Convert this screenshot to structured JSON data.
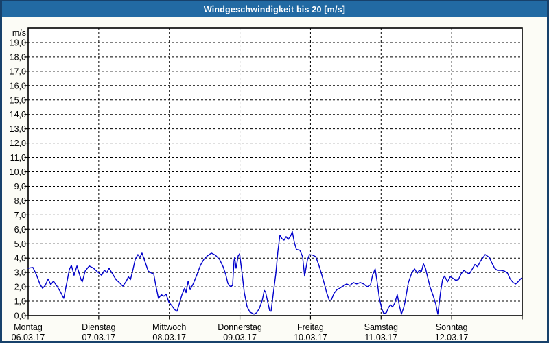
{
  "window": {
    "title": "Windgeschwindigkeit bis 20 [m/s]"
  },
  "colors": {
    "titlebar_bg": "#226AA3",
    "title_text": "#FFFFFF",
    "window_border": "#17416B",
    "page_bg": "#FCFCF6",
    "plot_bg": "#FFFFFF",
    "grid": "#000000",
    "series_blue": "#0000CC"
  },
  "chart_data": {
    "type": "line",
    "title": "Windgeschwindigkeit bis 20 [m/s]",
    "xlabel": "",
    "ylabel": "m/s",
    "ylim": [
      0,
      20
    ],
    "y_tick_step": 1.0,
    "grid": "dashed",
    "legend": "none",
    "y_tick_labels": [
      "0,0",
      "1,0",
      "2,0",
      "3,0",
      "4,0",
      "5,0",
      "6,0",
      "7,0",
      "8,0",
      "9,0",
      "10,0",
      "11,0",
      "12,0",
      "13,0",
      "14,0",
      "15,0",
      "16,0",
      "17,0",
      "18,0",
      "19,0"
    ],
    "x_axis": {
      "total_hours": 168,
      "days": [
        {
          "name": "Montag",
          "date": "06.03.17"
        },
        {
          "name": "Dienstag",
          "date": "07.03.17"
        },
        {
          "name": "Mittwoch",
          "date": "08.03.17"
        },
        {
          "name": "Donnerstag",
          "date": "09.03.17"
        },
        {
          "name": "Freitag",
          "date": "10.03.17"
        },
        {
          "name": "Samstag",
          "date": "11.03.17"
        },
        {
          "name": "Sonntag",
          "date": "12.03.17"
        }
      ]
    },
    "series": [
      {
        "name": "Windgeschwindigkeit",
        "unit": "m/s",
        "color": "#0000CC",
        "x_unit": "hours_from_monday_00",
        "points": [
          [
            0,
            3.3
          ],
          [
            1.6,
            3.35
          ],
          [
            2.8,
            2.85
          ],
          [
            4,
            2.2
          ],
          [
            4.9,
            1.9
          ],
          [
            5.8,
            2.1
          ],
          [
            6.8,
            2.55
          ],
          [
            7.7,
            2.15
          ],
          [
            8.6,
            2.4
          ],
          [
            9.8,
            2.05
          ],
          [
            11,
            1.65
          ],
          [
            12.1,
            1.2
          ],
          [
            13.3,
            2.45
          ],
          [
            14,
            3.2
          ],
          [
            14.7,
            3.5
          ],
          [
            15.6,
            2.8
          ],
          [
            16.6,
            3.45
          ],
          [
            18,
            2.5
          ],
          [
            18.4,
            2.35
          ],
          [
            19.4,
            3.1
          ],
          [
            20.8,
            3.45
          ],
          [
            22.2,
            3.3
          ],
          [
            23.8,
            3.0
          ],
          [
            25,
            2.8
          ],
          [
            25.9,
            3.15
          ],
          [
            26.8,
            3.0
          ],
          [
            27.5,
            3.3
          ],
          [
            28.7,
            2.9
          ],
          [
            29.9,
            2.5
          ],
          [
            31,
            2.3
          ],
          [
            32.2,
            2.05
          ],
          [
            33.4,
            2.4
          ],
          [
            34.1,
            2.7
          ],
          [
            34.8,
            2.5
          ],
          [
            35.7,
            3.25
          ],
          [
            36.4,
            3.9
          ],
          [
            37.3,
            4.25
          ],
          [
            38,
            4.05
          ],
          [
            38.7,
            4.35
          ],
          [
            39.9,
            3.65
          ],
          [
            40.8,
            3.1
          ],
          [
            42,
            2.95
          ],
          [
            42.7,
            2.9
          ],
          [
            43.4,
            2.1
          ],
          [
            44.3,
            1.2
          ],
          [
            45.3,
            1.45
          ],
          [
            46.2,
            1.35
          ],
          [
            46.9,
            1.5
          ],
          [
            47.8,
            0.95
          ],
          [
            48.8,
            0.7
          ],
          [
            49.9,
            0.4
          ],
          [
            50.6,
            0.3
          ],
          [
            51.6,
            0.95
          ],
          [
            52.3,
            1.45
          ],
          [
            53.2,
            1.9
          ],
          [
            53.7,
            1.6
          ],
          [
            54.4,
            2.4
          ],
          [
            55.1,
            1.8
          ],
          [
            56.2,
            2.25
          ],
          [
            57.4,
            2.85
          ],
          [
            58.6,
            3.5
          ],
          [
            59.7,
            3.9
          ],
          [
            60.9,
            4.15
          ],
          [
            62.3,
            4.35
          ],
          [
            63.7,
            4.2
          ],
          [
            65.1,
            3.9
          ],
          [
            66.3,
            3.4
          ],
          [
            67.2,
            2.85
          ],
          [
            67.9,
            2.25
          ],
          [
            68.8,
            2.0
          ],
          [
            69.5,
            2.1
          ],
          [
            70,
            3.8
          ],
          [
            70.2,
            4.05
          ],
          [
            70.7,
            3.3
          ],
          [
            71.4,
            4.15
          ],
          [
            71.9,
            4.3
          ],
          [
            72.6,
            3.2
          ],
          [
            73.5,
            1.6
          ],
          [
            74.4,
            0.65
          ],
          [
            75.4,
            0.25
          ],
          [
            76.8,
            0.1
          ],
          [
            77.7,
            0.2
          ],
          [
            78.6,
            0.5
          ],
          [
            79.6,
            1.05
          ],
          [
            80.3,
            1.75
          ],
          [
            80.7,
            1.65
          ],
          [
            81.4,
            1.0
          ],
          [
            82.1,
            0.35
          ],
          [
            82.6,
            0.3
          ],
          [
            83.3,
            1.45
          ],
          [
            84.2,
            2.9
          ],
          [
            84.9,
            4.45
          ],
          [
            85.6,
            5.6
          ],
          [
            86.3,
            5.35
          ],
          [
            87,
            5.25
          ],
          [
            87.7,
            5.5
          ],
          [
            88.4,
            5.3
          ],
          [
            89.4,
            5.6
          ],
          [
            89.8,
            5.85
          ],
          [
            90.5,
            5.1
          ],
          [
            91.2,
            4.6
          ],
          [
            92.4,
            4.55
          ],
          [
            93.3,
            4.1
          ],
          [
            94,
            2.75
          ],
          [
            95,
            3.9
          ],
          [
            95.7,
            4.25
          ],
          [
            96.8,
            4.2
          ],
          [
            97.8,
            4.1
          ],
          [
            98.7,
            3.6
          ],
          [
            99.6,
            3.0
          ],
          [
            100.6,
            2.3
          ],
          [
            101.5,
            1.6
          ],
          [
            102.4,
            1.05
          ],
          [
            103.1,
            1.1
          ],
          [
            104,
            1.55
          ],
          [
            105,
            1.8
          ],
          [
            105.9,
            1.9
          ],
          [
            107.1,
            2.05
          ],
          [
            108.3,
            2.2
          ],
          [
            109.4,
            2.1
          ],
          [
            110.6,
            2.3
          ],
          [
            111.7,
            2.2
          ],
          [
            112.9,
            2.3
          ],
          [
            114.1,
            2.2
          ],
          [
            115.3,
            2.0
          ],
          [
            116.4,
            2.15
          ],
          [
            117.1,
            2.8
          ],
          [
            118,
            3.25
          ],
          [
            118.7,
            2.3
          ],
          [
            119.4,
            1.25
          ],
          [
            120.2,
            0.5
          ],
          [
            120.9,
            0.15
          ],
          [
            121.8,
            0.2
          ],
          [
            122.5,
            0.55
          ],
          [
            123.2,
            0.75
          ],
          [
            123.9,
            0.6
          ],
          [
            124.6,
            0.85
          ],
          [
            125.5,
            1.45
          ],
          [
            126.2,
            0.7
          ],
          [
            126.9,
            0.1
          ],
          [
            127.6,
            0.5
          ],
          [
            128.1,
            0.9
          ],
          [
            129.3,
            2.3
          ],
          [
            130.4,
            2.95
          ],
          [
            131.4,
            3.25
          ],
          [
            132.3,
            2.95
          ],
          [
            133,
            3.15
          ],
          [
            133.7,
            3.05
          ],
          [
            134.4,
            3.6
          ],
          [
            135.1,
            3.3
          ],
          [
            135.8,
            2.7
          ],
          [
            136.7,
            1.95
          ],
          [
            137.7,
            1.4
          ],
          [
            138.6,
            0.8
          ],
          [
            139.3,
            0.1
          ],
          [
            140.2,
            1.6
          ],
          [
            140.9,
            2.5
          ],
          [
            141.6,
            2.75
          ],
          [
            142.6,
            2.35
          ],
          [
            143.5,
            2.7
          ],
          [
            144.4,
            2.6
          ],
          [
            145.4,
            2.45
          ],
          [
            146.3,
            2.5
          ],
          [
            147.2,
            2.9
          ],
          [
            148.2,
            3.15
          ],
          [
            149.1,
            3.0
          ],
          [
            150,
            2.9
          ],
          [
            150.9,
            3.2
          ],
          [
            151.9,
            3.55
          ],
          [
            152.8,
            3.4
          ],
          [
            153.7,
            3.75
          ],
          [
            154.7,
            4.05
          ],
          [
            155.4,
            4.25
          ],
          [
            156.1,
            4.15
          ],
          [
            156.8,
            4.05
          ],
          [
            157.7,
            3.65
          ],
          [
            158.6,
            3.3
          ],
          [
            159.5,
            3.15
          ],
          [
            160.7,
            3.15
          ],
          [
            161.9,
            3.1
          ],
          [
            163,
            2.95
          ],
          [
            163.9,
            2.55
          ],
          [
            164.9,
            2.3
          ],
          [
            165.8,
            2.2
          ],
          [
            166.8,
            2.4
          ],
          [
            167.7,
            2.6
          ]
        ]
      }
    ]
  }
}
